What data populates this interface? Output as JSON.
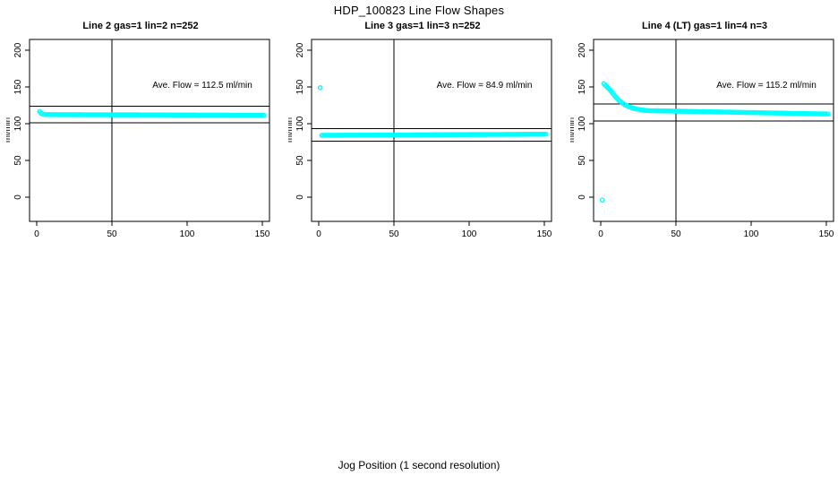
{
  "title": "HDP_100823  Line Flow Shapes",
  "xlabel": "Jog Position (1 second resolution)",
  "colors": {
    "points": "#00FFFF",
    "axis": "#000000",
    "background": "#FFFFFF"
  },
  "chart_data": [
    {
      "type": "scatter",
      "title": "Line 2 gas=1 lin=2 n=252",
      "ylabel": "ml/min",
      "annotation": "Ave. Flow =  112.5  ml/min",
      "ave_flow_ml_min": 112.5,
      "n": 252,
      "xticks": [
        0,
        50,
        100,
        150
      ],
      "yticks": [
        0,
        50,
        100,
        150,
        200
      ],
      "xlim": [
        0,
        150
      ],
      "ylim": [
        0,
        200
      ],
      "ref_line_x": 50,
      "ref_lines_y": [
        101.3,
        123.8
      ],
      "points": [
        [
          2,
          116.5
        ],
        [
          3,
          114.2
        ],
        [
          4,
          113.2
        ],
        [
          5,
          112.7
        ]
      ],
      "runs": [
        [
          6,
          151,
          112.4,
          111.5
        ]
      ]
    },
    {
      "type": "scatter",
      "title": "Line 3 gas=1 lin=3 n=252",
      "ylabel": "ml/min",
      "annotation": "Ave. Flow =  84.9  ml/min",
      "ave_flow_ml_min": 84.9,
      "n": 252,
      "xticks": [
        0,
        50,
        100,
        150
      ],
      "yticks": [
        0,
        50,
        100,
        150,
        200
      ],
      "xlim": [
        0,
        150
      ],
      "ylim": [
        0,
        200
      ],
      "ref_line_x": 50,
      "ref_lines_y": [
        76.4,
        93.4
      ],
      "points": [
        [
          1,
          149
        ]
      ],
      "runs": [
        [
          2,
          151,
          84.2,
          85.7
        ]
      ]
    },
    {
      "type": "scatter",
      "title": "Line 4 (LT) gas=1 lin=4 n=3",
      "ylabel": "ml/min",
      "annotation": "Ave. Flow =  115.2  ml/min",
      "ave_flow_ml_min": 115.2,
      "n": 3,
      "xticks": [
        0,
        50,
        100,
        150
      ],
      "yticks": [
        0,
        50,
        100,
        150,
        200
      ],
      "xlim": [
        0,
        150
      ],
      "ylim": [
        0,
        200
      ],
      "ref_line_x": 50,
      "ref_lines_y": [
        103.7,
        126.7
      ],
      "points": [
        [
          1,
          -4
        ],
        [
          2,
          154.5
        ],
        [
          3,
          152.5
        ],
        [
          4,
          150.5
        ],
        [
          5,
          148.5
        ],
        [
          6,
          146.2
        ],
        [
          7,
          143.8
        ],
        [
          8,
          141.2
        ],
        [
          9,
          138.6
        ],
        [
          10,
          136.2
        ],
        [
          11,
          134
        ],
        [
          12,
          132
        ],
        [
          13,
          130.2
        ],
        [
          14,
          128.6
        ],
        [
          15,
          127.2
        ],
        [
          16,
          125.9
        ],
        [
          17,
          124.8
        ],
        [
          18,
          123.8
        ],
        [
          19,
          123
        ],
        [
          20,
          122.2
        ],
        [
          21,
          121.5
        ],
        [
          22,
          120.9
        ],
        [
          23,
          120.4
        ],
        [
          24,
          119.9
        ],
        [
          25,
          119.5
        ],
        [
          26,
          119.1
        ],
        [
          27,
          118.8
        ],
        [
          28,
          118.5
        ],
        [
          29,
          118.2
        ],
        [
          30,
          118
        ]
      ],
      "runs": [
        [
          31,
          151,
          117.8,
          113.2
        ]
      ]
    }
  ]
}
